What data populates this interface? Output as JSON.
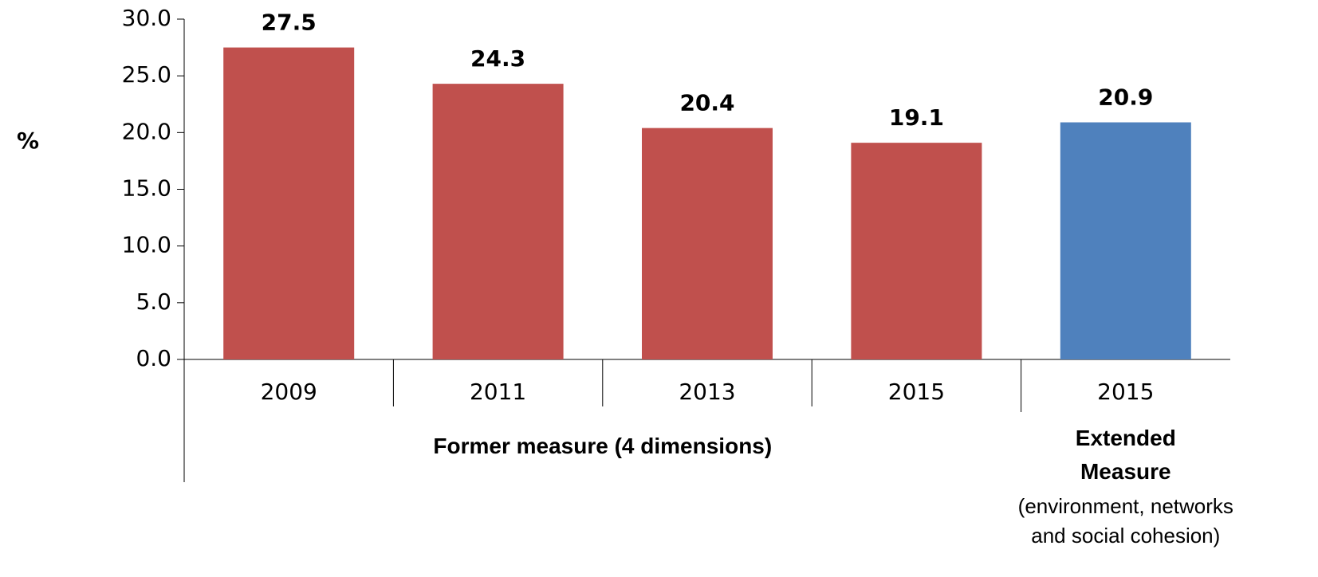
{
  "chart_data": {
    "type": "bar",
    "y_label": "%",
    "categories": [
      "2009",
      "2011",
      "2013",
      "2015",
      "2015"
    ],
    "series": [
      {
        "name": "Former measure (4 dimensions)",
        "color": "#c0504d",
        "values": [
          27.5,
          24.3,
          20.4,
          19.1,
          null
        ]
      },
      {
        "name": "Extended Measure",
        "note": "(environment, networks and social cohesion)",
        "color": "#4f81bd",
        "values": [
          null,
          null,
          null,
          null,
          20.9
        ]
      }
    ],
    "ylim": [
      0,
      30
    ],
    "yticks": [
      {
        "value": 0,
        "label": "0.0"
      },
      {
        "value": 5,
        "label": "5.0"
      },
      {
        "value": 10,
        "label": "10.0"
      },
      {
        "value": 15,
        "label": "15.0"
      },
      {
        "value": 20,
        "label": "20.0"
      },
      {
        "value": 25,
        "label": "25.0"
      },
      {
        "value": 30,
        "label": "30.0"
      }
    ]
  }
}
